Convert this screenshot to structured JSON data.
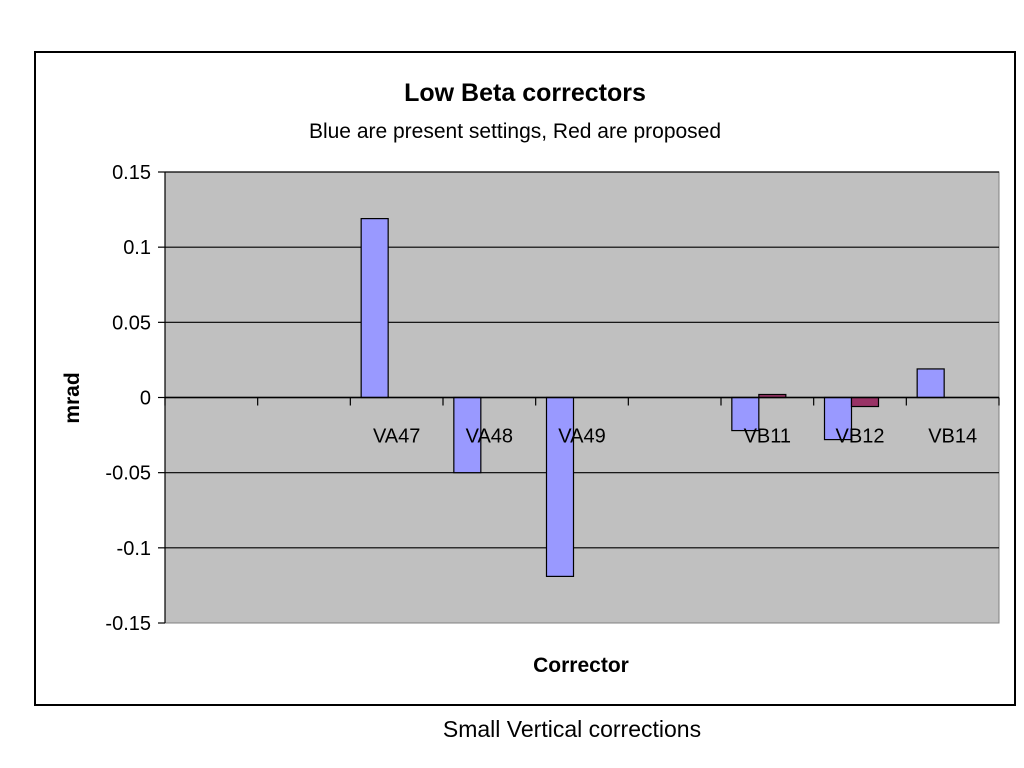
{
  "caption": "Small Vertical corrections",
  "chart_data": {
    "type": "bar",
    "title": "Low Beta correctors",
    "subtitle": "Blue are present settings, Red are proposed",
    "xlabel": "Corrector",
    "ylabel": "mrad",
    "ylim": [
      -0.15,
      0.15
    ],
    "yticks": [
      0.15,
      0.1,
      0.05,
      0,
      -0.05,
      -0.1,
      -0.15
    ],
    "ytick_labels": [
      "0.15",
      "0.1",
      "0.05",
      "0",
      "-0.05",
      "-0.1",
      "-0.15"
    ],
    "categories": [
      "",
      "",
      "VA47",
      "VA48",
      "VA49",
      "",
      "VB11",
      "VB12",
      "VB14"
    ],
    "series": [
      {
        "color": "#9999ff",
        "values": [
          null,
          null,
          0.119,
          -0.05,
          -0.119,
          null,
          -0.022,
          -0.028,
          0.019
        ]
      },
      {
        "color": "#993366",
        "values": [
          null,
          null,
          null,
          null,
          null,
          null,
          0.002,
          -0.006,
          null
        ]
      }
    ],
    "grid": true,
    "plot_background": "#c0c0c0",
    "legend": "none"
  }
}
